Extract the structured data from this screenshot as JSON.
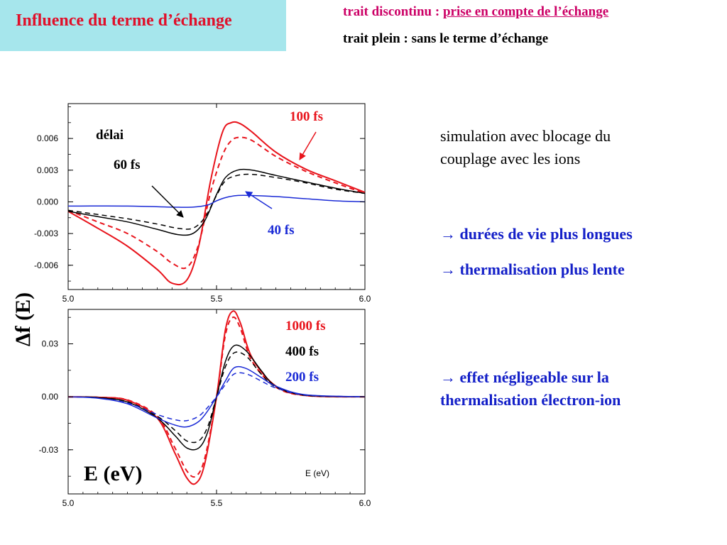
{
  "slide": {
    "title": "Influence du terme d’échange",
    "legend_dashed_prefix": "trait discontinu : ",
    "legend_dashed_text": "prise en compte de l’échange",
    "legend_solid_text": "trait plein : sans le terme d’échange",
    "note_line1": "simulation avec blocage du",
    "note_line2": "couplage avec les ions",
    "arrow": "→",
    "point1": "durées de vie plus longues",
    "point2": "thermalisation plus lente",
    "point3_line1": "effet négligeable sur la",
    "point3_line2": "thermalisation électron-ion"
  },
  "colors": {
    "red": "#e8141c",
    "black": "#000000",
    "blue": "#1a2ad6",
    "title_bg": "#a6e6ec"
  },
  "chart_data": [
    {
      "type": "line",
      "ylabel": "Δf (E)",
      "xlim": [
        5.0,
        6.0
      ],
      "ylim": [
        -0.0083,
        0.0093
      ],
      "xticks": [
        "5.0",
        "5.5",
        "6.0"
      ],
      "yticks": [
        "0.006",
        "0.003",
        "0.000",
        "-0.003",
        "-0.006"
      ],
      "ytick_values": [
        0.006,
        0.003,
        0.0,
        -0.003,
        -0.006
      ],
      "annotations": [
        "délai",
        "60 fs",
        "100 fs",
        "40 fs"
      ],
      "series": [
        {
          "name": "100 fs",
          "color": "red",
          "dash": false,
          "x": [
            5.0,
            5.1,
            5.2,
            5.3,
            5.35,
            5.4,
            5.44,
            5.48,
            5.52,
            5.55,
            5.58,
            5.62,
            5.7,
            5.8,
            5.9,
            6.0
          ],
          "y": [
            -0.0009,
            -0.0025,
            -0.0042,
            -0.0064,
            -0.0077,
            -0.0074,
            -0.0042,
            0.002,
            0.0066,
            0.0075,
            0.0074,
            0.0066,
            0.0047,
            0.0031,
            0.002,
            0.0009
          ]
        },
        {
          "name": "100 fs",
          "color": "red",
          "dash": true,
          "x": [
            5.0,
            5.1,
            5.2,
            5.3,
            5.35,
            5.4,
            5.44,
            5.48,
            5.52,
            5.55,
            5.58,
            5.62,
            5.7,
            5.8,
            5.9,
            6.0
          ],
          "y": [
            -0.0008,
            -0.0019,
            -0.003,
            -0.0047,
            -0.0058,
            -0.0062,
            -0.004,
            0.0009,
            0.0044,
            0.0058,
            0.0061,
            0.0058,
            0.0043,
            0.0029,
            0.0018,
            0.0008
          ]
        },
        {
          "name": "60 fs",
          "color": "black",
          "dash": false,
          "x": [
            5.0,
            5.1,
            5.2,
            5.3,
            5.37,
            5.42,
            5.46,
            5.5,
            5.53,
            5.57,
            5.62,
            5.7,
            5.8,
            5.9,
            6.0
          ],
          "y": [
            -0.0009,
            -0.0014,
            -0.0019,
            -0.0026,
            -0.0031,
            -0.003,
            -0.0018,
            0.0007,
            0.0023,
            0.003,
            0.003,
            0.0025,
            0.0019,
            0.0013,
            0.0008
          ]
        },
        {
          "name": "60 fs",
          "color": "black",
          "dash": true,
          "x": [
            5.0,
            5.1,
            5.2,
            5.3,
            5.37,
            5.42,
            5.46,
            5.5,
            5.53,
            5.57,
            5.62,
            5.7,
            5.8,
            5.9,
            6.0
          ],
          "y": [
            -0.0008,
            -0.0012,
            -0.0016,
            -0.0021,
            -0.0025,
            -0.0025,
            -0.0015,
            0.0006,
            0.002,
            0.0025,
            0.0026,
            0.0023,
            0.0018,
            0.0012,
            0.0008
          ]
        },
        {
          "name": "40 fs",
          "color": "blue",
          "dash": false,
          "x": [
            5.0,
            5.2,
            5.35,
            5.42,
            5.47,
            5.5,
            5.53,
            5.57,
            5.62,
            5.7,
            5.8,
            5.9,
            6.0
          ],
          "y": [
            -0.0004,
            -0.0004,
            -0.0005,
            -0.0005,
            -0.0003,
            0.0001,
            0.0004,
            0.0006,
            0.0006,
            0.0005,
            0.0003,
            0.0001,
            0.0
          ]
        }
      ]
    },
    {
      "type": "line",
      "xlabel": "E (eV)",
      "xlabel_small": "E (eV)",
      "xlim": [
        5.0,
        6.0
      ],
      "ylim": [
        -0.055,
        0.0495
      ],
      "xticks": [
        "5.0",
        "5.5",
        "6.0"
      ],
      "yticks": [
        "0.03",
        "0.00",
        "-0.03"
      ],
      "ytick_values": [
        0.03,
        0.0,
        -0.03
      ],
      "annotations": [
        "1000 fs",
        "400 fs",
        "200 fs"
      ],
      "series": [
        {
          "name": "1000 fs",
          "color": "red",
          "dash": false,
          "x": [
            5.0,
            5.1,
            5.2,
            5.3,
            5.36,
            5.4,
            5.43,
            5.46,
            5.5,
            5.53,
            5.555,
            5.58,
            5.62,
            5.7,
            5.8,
            6.0
          ],
          "y": [
            0.0,
            -0.0003,
            -0.002,
            -0.012,
            -0.032,
            -0.046,
            -0.049,
            -0.038,
            0.0,
            0.038,
            0.0485,
            0.042,
            0.022,
            0.006,
            0.0008,
            0.0
          ]
        },
        {
          "name": "1000 fs",
          "color": "red",
          "dash": true,
          "x": [
            5.0,
            5.1,
            5.2,
            5.3,
            5.36,
            5.4,
            5.43,
            5.46,
            5.5,
            5.53,
            5.555,
            5.58,
            5.62,
            5.7,
            5.8,
            6.0
          ],
          "y": [
            0.0,
            -0.0003,
            -0.0018,
            -0.011,
            -0.029,
            -0.042,
            -0.045,
            -0.035,
            0.0,
            0.035,
            0.045,
            0.039,
            0.02,
            0.0055,
            0.0007,
            0.0
          ]
        },
        {
          "name": "400 fs",
          "color": "black",
          "dash": false,
          "x": [
            5.0,
            5.1,
            5.2,
            5.3,
            5.36,
            5.4,
            5.44,
            5.47,
            5.5,
            5.53,
            5.56,
            5.6,
            5.65,
            5.7,
            5.8,
            6.0
          ],
          "y": [
            0.0,
            -0.0004,
            -0.003,
            -0.012,
            -0.022,
            -0.029,
            -0.029,
            -0.02,
            0.0,
            0.02,
            0.029,
            0.026,
            0.015,
            0.006,
            0.0009,
            0.0
          ]
        },
        {
          "name": "400 fs",
          "color": "black",
          "dash": true,
          "x": [
            5.0,
            5.1,
            5.2,
            5.3,
            5.36,
            5.4,
            5.44,
            5.47,
            5.5,
            5.53,
            5.56,
            5.6,
            5.65,
            5.7,
            5.8,
            6.0
          ],
          "y": [
            0.0,
            -0.0004,
            -0.0028,
            -0.011,
            -0.019,
            -0.025,
            -0.025,
            -0.017,
            0.0,
            0.017,
            0.025,
            0.023,
            0.013,
            0.0055,
            0.0008,
            0.0
          ]
        },
        {
          "name": "200 fs",
          "color": "blue",
          "dash": false,
          "x": [
            5.0,
            5.1,
            5.2,
            5.3,
            5.36,
            5.4,
            5.44,
            5.47,
            5.5,
            5.53,
            5.56,
            5.6,
            5.65,
            5.7,
            5.8,
            6.0
          ],
          "y": [
            0.0,
            -0.0008,
            -0.004,
            -0.012,
            -0.016,
            -0.017,
            -0.014,
            -0.008,
            0.0,
            0.009,
            0.0165,
            0.016,
            0.011,
            0.006,
            0.0012,
            0.0
          ]
        },
        {
          "name": "200 fs",
          "color": "blue",
          "dash": true,
          "x": [
            5.0,
            5.1,
            5.2,
            5.3,
            5.36,
            5.4,
            5.44,
            5.47,
            5.5,
            5.53,
            5.56,
            5.6,
            5.65,
            5.7,
            5.8,
            6.0
          ],
          "y": [
            0.0,
            -0.0007,
            -0.0035,
            -0.01,
            -0.013,
            -0.0135,
            -0.011,
            -0.006,
            0.0,
            0.007,
            0.013,
            0.013,
            0.009,
            0.005,
            0.001,
            0.0
          ]
        }
      ]
    }
  ]
}
